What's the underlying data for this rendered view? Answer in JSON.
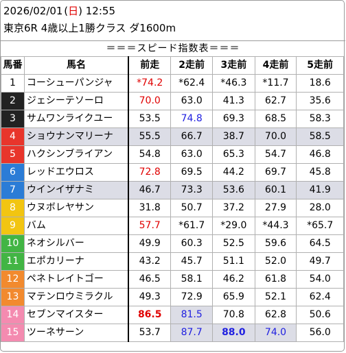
{
  "header": {
    "date": "2026/02/01",
    "weekday_open": "(",
    "weekday": "日",
    "weekday_close": ")",
    "time": "12:55",
    "race": "東京6R 4歳以上1勝クラス ダ1600m"
  },
  "section_title": "＝＝＝スピード指数表＝＝＝",
  "columns": [
    "馬番",
    "馬名",
    "前走",
    "2走前",
    "3走前",
    "4走前",
    "5走前"
  ],
  "colors": {
    "frame_1": "#ffffff",
    "frame_2": "#222222",
    "frame_3": "#e8352b",
    "frame_4": "#e8352b",
    "frame_5": "#2b7cd6",
    "frame_6": "#2b7cd6",
    "frame_7": "#f2c511",
    "frame_8": "#f2c511",
    "frame_9": "#42b544",
    "frame_10": "#42b544",
    "frame_11": "#f28a2e",
    "frame_12": "#f28a2e",
    "frame_13": "#f48bb0",
    "frame_14": "#f48bb0",
    "highlight": "#dcdde6",
    "red_text": "#e00000",
    "blue_text": "#2020e0"
  },
  "rows": [
    {
      "no": "1",
      "name": "コーシューパンジャ",
      "bg": "#ffffff",
      "fg": "#000000",
      "shade": false,
      "v": [
        "*74.2",
        "*62.4",
        "*46.3",
        "*11.7",
        "18.6"
      ],
      "cls": [
        "red",
        "",
        "",
        "",
        ""
      ]
    },
    {
      "no": "2",
      "name": "ジェシーテソーロ",
      "bg": "#222222",
      "fg": "#ffffff",
      "shade": false,
      "v": [
        "70.0",
        "63.0",
        "41.3",
        "62.7",
        "35.6"
      ],
      "cls": [
        "red",
        "",
        "",
        "",
        ""
      ]
    },
    {
      "no": "3",
      "name": "サムワンライクユー",
      "bg": "#222222",
      "fg": "#ffffff",
      "shade": false,
      "v": [
        "53.5",
        "74.8",
        "69.3",
        "68.5",
        "58.3"
      ],
      "cls": [
        "",
        "blue",
        "",
        "",
        ""
      ]
    },
    {
      "no": "4",
      "name": "ショウナンマリーナ",
      "bg": "#e8352b",
      "fg": "#ffffff",
      "shade": true,
      "v": [
        "55.5",
        "66.7",
        "38.7",
        "70.0",
        "58.5"
      ],
      "cls": [
        "",
        "",
        "",
        "",
        ""
      ]
    },
    {
      "no": "5",
      "name": "ハクシンブライアン",
      "bg": "#e8352b",
      "fg": "#ffffff",
      "shade": false,
      "v": [
        "54.8",
        "63.0",
        "65.3",
        "54.7",
        "46.8"
      ],
      "cls": [
        "",
        "",
        "",
        "",
        ""
      ]
    },
    {
      "no": "6",
      "name": "レッドエウロス",
      "bg": "#2b7cd6",
      "fg": "#ffffff",
      "shade": false,
      "v": [
        "72.8",
        "69.5",
        "44.2",
        "69.7",
        "45.8"
      ],
      "cls": [
        "red",
        "",
        "",
        "",
        ""
      ]
    },
    {
      "no": "7",
      "name": "ウインイザナミ",
      "bg": "#2b7cd6",
      "fg": "#ffffff",
      "shade": true,
      "v": [
        "46.7",
        "73.3",
        "53.6",
        "60.1",
        "41.9"
      ],
      "cls": [
        "",
        "",
        "",
        "",
        ""
      ]
    },
    {
      "no": "8",
      "name": "ウヌボレヤサン",
      "bg": "#f2c511",
      "fg": "#ffffff",
      "shade": false,
      "v": [
        "31.8",
        "50.7",
        "37.2",
        "27.9",
        "28.0"
      ],
      "cls": [
        "",
        "",
        "",
        "",
        ""
      ]
    },
    {
      "no": "9",
      "name": "バム",
      "bg": "#f2c511",
      "fg": "#ffffff",
      "shade": false,
      "v": [
        "57.7",
        "*61.7",
        "*29.0",
        "*44.3",
        "*65.7"
      ],
      "cls": [
        "red",
        "",
        "",
        "",
        ""
      ]
    },
    {
      "no": "10",
      "name": "ネオシルバー",
      "bg": "#42b544",
      "fg": "#ffffff",
      "shade": false,
      "v": [
        "49.9",
        "60.3",
        "52.5",
        "59.6",
        "64.5"
      ],
      "cls": [
        "",
        "",
        "",
        "",
        ""
      ]
    },
    {
      "no": "11",
      "name": "エポカリーナ",
      "bg": "#42b544",
      "fg": "#ffffff",
      "shade": false,
      "v": [
        "43.2",
        "45.7",
        "51.1",
        "52.0",
        "49.7"
      ],
      "cls": [
        "",
        "",
        "",
        "",
        ""
      ]
    },
    {
      "no": "12",
      "name": "ペネトレイトゴー",
      "bg": "#f28a2e",
      "fg": "#ffffff",
      "shade": false,
      "v": [
        "46.5",
        "58.1",
        "46.2",
        "61.8",
        "54.0"
      ],
      "cls": [
        "",
        "",
        "",
        "",
        ""
      ]
    },
    {
      "no": "13",
      "name": "マテンロウミラクル",
      "bg": "#f28a2e",
      "fg": "#ffffff",
      "shade": false,
      "v": [
        "49.3",
        "72.9",
        "65.9",
        "52.1",
        "62.4"
      ],
      "cls": [
        "",
        "",
        "",
        "",
        ""
      ]
    },
    {
      "no": "14",
      "name": "セブンマイスター",
      "bg": "#f48bb0",
      "fg": "#ffffff",
      "shade": false,
      "v": [
        "86.5",
        "81.5",
        "70.8",
        "62.8",
        "50.6"
      ],
      "cls": [
        "red bold",
        "blue bgb",
        "",
        "",
        ""
      ]
    },
    {
      "no": "15",
      "name": "ツーネサーン",
      "bg": "#f48bb0",
      "fg": "#ffffff",
      "shade": false,
      "v": [
        "53.7",
        "87.7",
        "88.0",
        "74.0",
        "56.0"
      ],
      "cls": [
        "",
        "blue bgb",
        "blue bold bgb",
        "blue bgb",
        ""
      ]
    }
  ]
}
